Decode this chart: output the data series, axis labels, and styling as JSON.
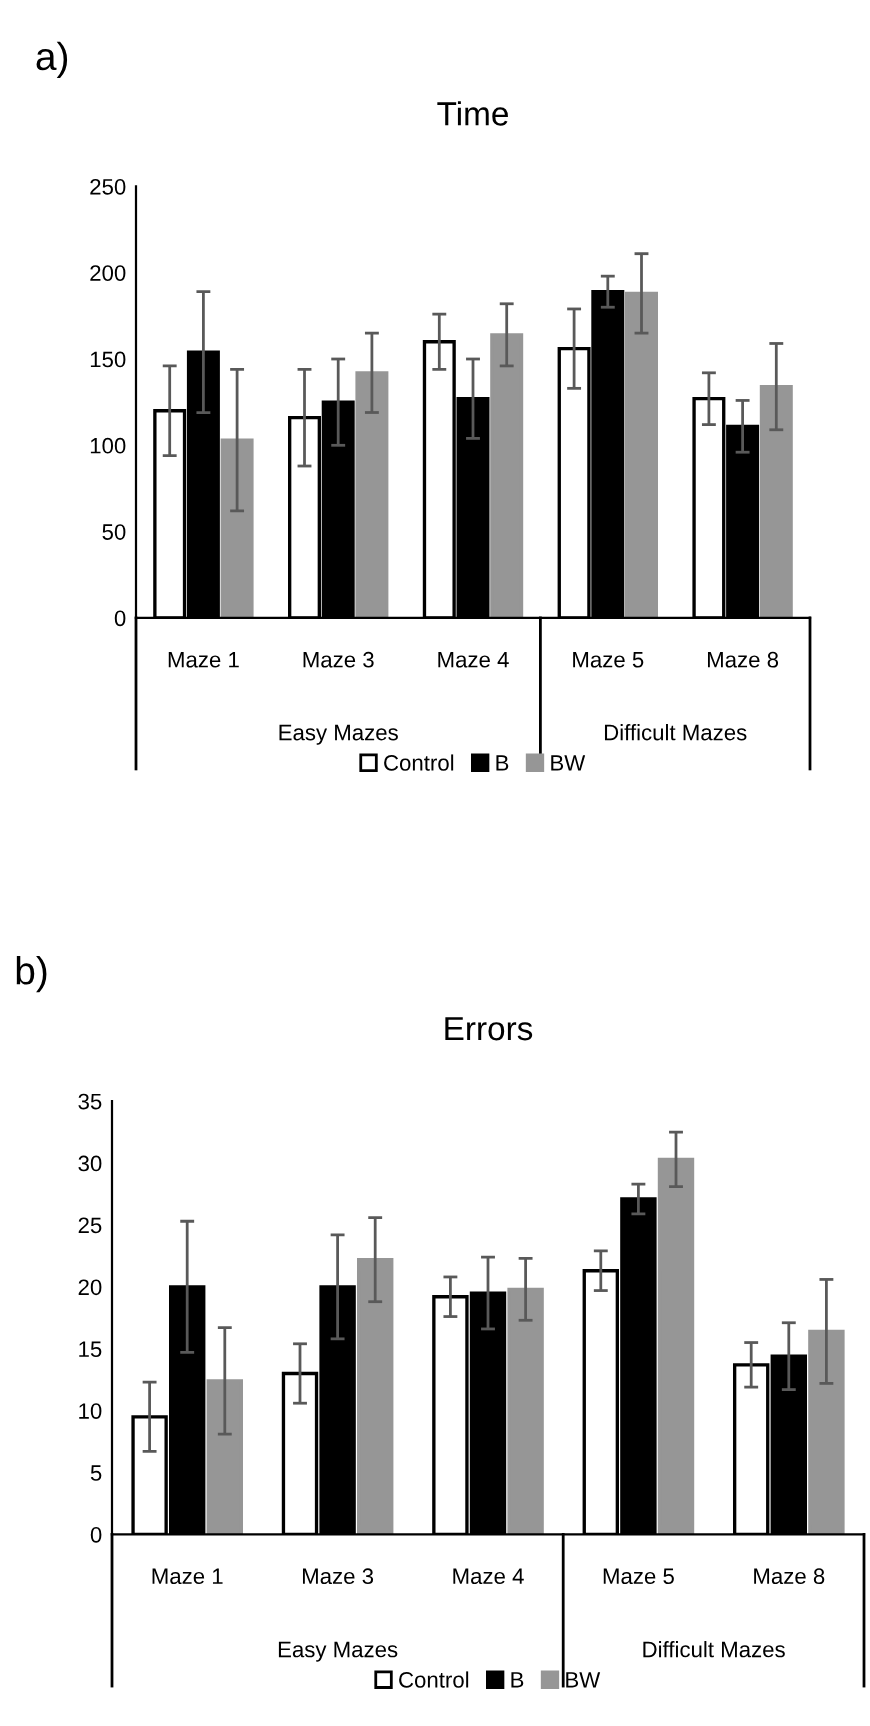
{
  "chart_data": [
    {
      "type": "bar",
      "title": "Time",
      "categories": [
        "Maze 1",
        "Maze 3",
        "Maze 4",
        "Maze 5",
        "Maze 8"
      ],
      "series": [
        {
          "name": "Control",
          "color": "#ffffff",
          "values": [
            120,
            116,
            160,
            156,
            127
          ],
          "errors": [
            26,
            28,
            16,
            23,
            15
          ]
        },
        {
          "name": "B",
          "color": "#000000",
          "values": [
            154,
            125,
            127,
            189,
            111
          ],
          "errors": [
            35,
            25,
            23,
            9,
            15
          ]
        },
        {
          "name": "BW",
          "color": "#969696",
          "values": [
            103,
            142,
            164,
            188,
            134
          ],
          "errors": [
            41,
            23,
            18,
            23,
            25
          ]
        }
      ],
      "ylim": [
        0,
        250
      ],
      "yticks": [
        0,
        50,
        100,
        150,
        200,
        250
      ],
      "grid": false,
      "legend": "bottom",
      "annotations": [
        "a)",
        "Easy Mazes",
        "Difficult Mazes"
      ]
    },
    {
      "type": "bar",
      "title": "Errors",
      "categories": [
        "Maze 1",
        "Maze 3",
        "Maze 4",
        "Maze 5",
        "Maze 8"
      ],
      "series": [
        {
          "name": "Control",
          "color": "#ffffff",
          "values": [
            9.5,
            13,
            19.2,
            21.3,
            13.7
          ],
          "errors": [
            2.8,
            2.4,
            1.6,
            1.6,
            1.8
          ]
        },
        {
          "name": "B",
          "color": "#000000",
          "values": [
            20,
            20,
            19.5,
            27.1,
            14.4
          ],
          "errors": [
            5.3,
            4.2,
            2.9,
            1.2,
            2.7
          ]
        },
        {
          "name": "BW",
          "color": "#969696",
          "values": [
            12.4,
            22.2,
            19.8,
            30.3,
            16.4
          ],
          "errors": [
            4.3,
            3.4,
            2.5,
            2.2,
            4.2
          ]
        }
      ],
      "ylim": [
        0,
        35
      ],
      "yticks": [
        0,
        5,
        10,
        15,
        20,
        25,
        30,
        35
      ],
      "grid": false,
      "legend": "bottom",
      "annotations": [
        "b)",
        "Easy Mazes",
        "Difficult Mazes"
      ]
    }
  ]
}
